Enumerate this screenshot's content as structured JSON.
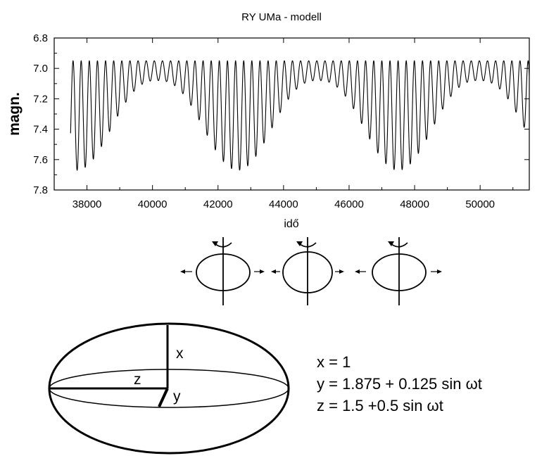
{
  "chart_data": {
    "type": "line",
    "title": "RY UMa - modell",
    "xlabel": "idő",
    "ylabel": "magn.",
    "xlim": [
      37000,
      51500
    ],
    "ylim": [
      7.8,
      6.8
    ],
    "y_inverted": true,
    "x_ticks": [
      38000,
      40000,
      42000,
      44000,
      46000,
      48000,
      50000
    ],
    "y_ticks": [
      6.8,
      7.0,
      7.2,
      7.4,
      7.6,
      7.8
    ],
    "y_tick_labels": [
      "6.8",
      "7.0",
      "7.2",
      "7.4",
      "7.6",
      "7.8"
    ],
    "series": [
      {
        "x_start": 37500,
        "x_end": 51500,
        "oscillation_period": 248,
        "maxima_level": 6.95,
        "beat_period": 4900,
        "deepest_minimum": 7.67,
        "shallowest_minimum": 7.08,
        "first_deep_minimum_x": 37700
      }
    ],
    "grid": false,
    "legend": "none"
  },
  "diagram": {
    "small_ellipses_count": 3,
    "big_ellipse_labels": {
      "x": "x",
      "y": "y",
      "z": "z"
    },
    "equations": [
      "x = 1",
      "y = 1.875 + 0.125 sin ωt",
      "z = 1.5 +0.5 sin ωt"
    ]
  }
}
